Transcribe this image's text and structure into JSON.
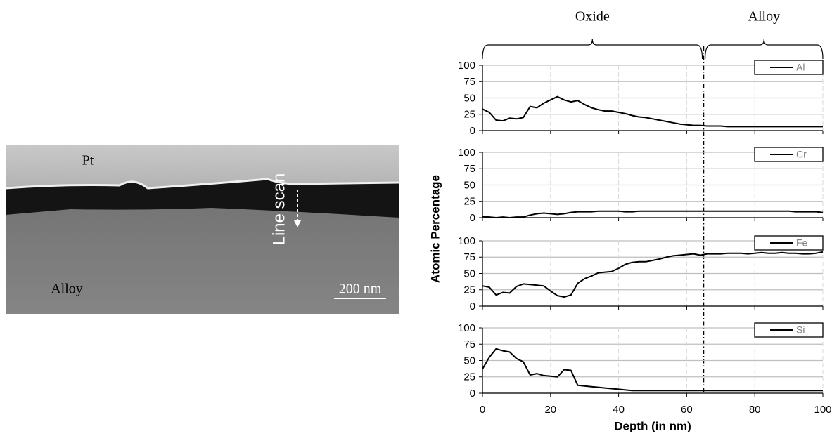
{
  "image": {
    "labels": {
      "top": "Pt",
      "scan": "Line scan",
      "bottom": "Alloy",
      "scale": "200 nm"
    }
  },
  "figure": {
    "ylabel": "Atomic Percentage",
    "regions": [
      {
        "label": "Oxide",
        "xlim": [
          0,
          65
        ]
      },
      {
        "label": "Alloy",
        "xlim": [
          65,
          100
        ]
      }
    ]
  },
  "chart_data": [
    {
      "type": "line",
      "x": [
        0,
        2,
        4,
        6,
        8,
        10,
        12,
        14,
        16,
        18,
        20,
        22,
        24,
        26,
        28,
        30,
        32,
        34,
        36,
        38,
        40,
        42,
        44,
        46,
        48,
        50,
        52,
        54,
        56,
        58,
        60,
        62,
        64,
        66,
        68,
        70,
        72,
        74,
        76,
        78,
        80,
        82,
        84,
        86,
        88,
        90,
        92,
        94,
        96,
        98,
        100
      ],
      "series": [
        {
          "name": "Al",
          "color": "#000000",
          "values": [
            33,
            28,
            16,
            15,
            19,
            18,
            20,
            37,
            35,
            42,
            47,
            52,
            47,
            44,
            46,
            40,
            35,
            32,
            30,
            30,
            28,
            26,
            23,
            21,
            20,
            18,
            16,
            14,
            12,
            10,
            9,
            8,
            8,
            7,
            7,
            7,
            6,
            6,
            6,
            6,
            6,
            6,
            6,
            6,
            6,
            6,
            6,
            6,
            6,
            6,
            6
          ]
        }
      ],
      "xlim": [
        0,
        100
      ],
      "xticks": [
        0,
        20,
        40,
        60,
        80,
        100
      ],
      "ylim": [
        0,
        100
      ],
      "yticks": [
        0,
        25,
        50,
        75,
        100
      ],
      "grid": true
    },
    {
      "type": "line",
      "x": [
        0,
        2,
        4,
        6,
        8,
        10,
        12,
        14,
        16,
        18,
        20,
        22,
        24,
        26,
        28,
        30,
        32,
        34,
        36,
        38,
        40,
        42,
        44,
        46,
        48,
        50,
        52,
        54,
        56,
        58,
        60,
        62,
        64,
        66,
        68,
        70,
        72,
        74,
        76,
        78,
        80,
        82,
        84,
        86,
        88,
        90,
        92,
        94,
        96,
        98,
        100
      ],
      "series": [
        {
          "name": "Cr",
          "color": "#000000",
          "values": [
            2,
            1,
            0,
            1,
            0,
            1,
            1,
            4,
            6,
            7,
            6,
            5,
            6,
            8,
            9,
            9,
            9,
            10,
            10,
            10,
            10,
            9,
            9,
            10,
            10,
            10,
            10,
            10,
            10,
            10,
            10,
            10,
            10,
            10,
            10,
            10,
            10,
            10,
            10,
            10,
            10,
            10,
            10,
            10,
            10,
            10,
            9,
            9,
            9,
            9,
            8
          ]
        }
      ],
      "xlim": [
        0,
        100
      ],
      "xticks": [
        0,
        20,
        40,
        60,
        80,
        100
      ],
      "ylim": [
        0,
        100
      ],
      "yticks": [
        0,
        25,
        50,
        75,
        100
      ],
      "grid": true
    },
    {
      "type": "line",
      "x": [
        0,
        2,
        4,
        6,
        8,
        10,
        12,
        14,
        16,
        18,
        20,
        22,
        24,
        26,
        28,
        30,
        32,
        34,
        36,
        38,
        40,
        42,
        44,
        46,
        48,
        50,
        52,
        54,
        56,
        58,
        60,
        62,
        64,
        66,
        68,
        70,
        72,
        74,
        76,
        78,
        80,
        82,
        84,
        86,
        88,
        90,
        92,
        94,
        96,
        98,
        100
      ],
      "series": [
        {
          "name": "Fe",
          "color": "#000000",
          "values": [
            31,
            29,
            17,
            21,
            20,
            30,
            34,
            33,
            32,
            31,
            23,
            16,
            14,
            17,
            35,
            42,
            46,
            51,
            52,
            53,
            58,
            64,
            67,
            68,
            68,
            70,
            72,
            75,
            77,
            78,
            79,
            80,
            78,
            80,
            80,
            80,
            81,
            81,
            81,
            80,
            81,
            82,
            81,
            81,
            82,
            81,
            81,
            80,
            80,
            81,
            83
          ]
        }
      ],
      "xlim": [
        0,
        100
      ],
      "xticks": [
        0,
        20,
        40,
        60,
        80,
        100
      ],
      "ylim": [
        0,
        100
      ],
      "yticks": [
        0,
        25,
        50,
        75,
        100
      ],
      "grid": true
    },
    {
      "type": "line",
      "x": [
        0,
        2,
        4,
        6,
        8,
        10,
        12,
        14,
        16,
        18,
        20,
        22,
        24,
        26,
        28,
        30,
        32,
        34,
        36,
        38,
        40,
        42,
        44,
        46,
        48,
        50,
        52,
        54,
        56,
        58,
        60,
        62,
        64,
        66,
        68,
        70,
        72,
        74,
        76,
        78,
        80,
        82,
        84,
        86,
        88,
        90,
        92,
        94,
        96,
        98,
        100
      ],
      "series": [
        {
          "name": "Si",
          "color": "#000000",
          "values": [
            37,
            55,
            68,
            65,
            63,
            53,
            48,
            28,
            30,
            27,
            26,
            25,
            36,
            35,
            12,
            11,
            10,
            9,
            8,
            7,
            6,
            5,
            4,
            4,
            4,
            4,
            4,
            4,
            4,
            4,
            4,
            4,
            4,
            4,
            4,
            4,
            4,
            4,
            4,
            4,
            4,
            4,
            4,
            4,
            4,
            4,
            4,
            4,
            4,
            4,
            4
          ]
        }
      ],
      "xlim": [
        0,
        100
      ],
      "xticks": [
        0,
        20,
        40,
        60,
        80,
        100
      ],
      "ylim": [
        0,
        100
      ],
      "yticks": [
        0,
        25,
        50,
        75,
        100
      ],
      "grid": true,
      "xlabel": "Depth (in nm)"
    }
  ]
}
